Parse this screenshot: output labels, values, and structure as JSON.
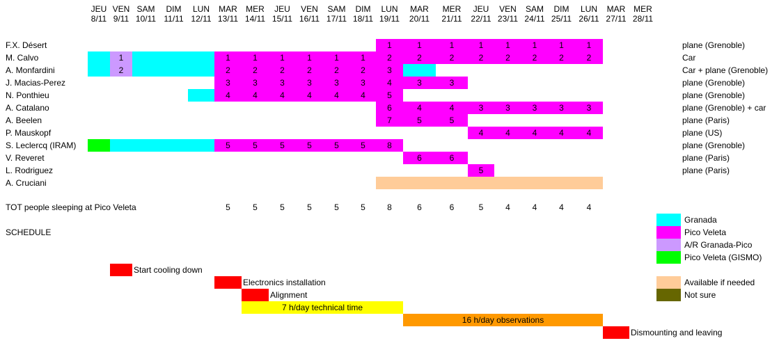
{
  "days": [
    {
      "d": "JEU",
      "n": "8/11"
    },
    {
      "d": "VEN",
      "n": "9/11"
    },
    {
      "d": "SAM",
      "n": "10/11"
    },
    {
      "d": "DIM",
      "n": "11/11"
    },
    {
      "d": "LUN",
      "n": "12/11"
    },
    {
      "d": "MAR",
      "n": "13/11"
    },
    {
      "d": "MER",
      "n": "14/11"
    },
    {
      "d": "JEU",
      "n": "15/11"
    },
    {
      "d": "VEN",
      "n": "16/11"
    },
    {
      "d": "SAM",
      "n": "17/11"
    },
    {
      "d": "DIM",
      "n": "18/11"
    },
    {
      "d": "LUN",
      "n": "19/11"
    },
    {
      "d": "MAR",
      "n": "20/11"
    },
    {
      "d": "MER",
      "n": "21/11"
    },
    {
      "d": "JEU",
      "n": "22/11"
    },
    {
      "d": "VEN",
      "n": "23/11"
    },
    {
      "d": "SAM",
      "n": "24/11"
    },
    {
      "d": "DIM",
      "n": "25/11"
    },
    {
      "d": "LUN",
      "n": "26/11"
    },
    {
      "d": "MAR",
      "n": "27/11"
    },
    {
      "d": "MER",
      "n": "28/11"
    }
  ],
  "colors": {
    "granada": "#00ffff",
    "pico": "#ff00ff",
    "ar": "#cc99ff",
    "gismo": "#00ff00",
    "available": "#ffcc99",
    "notsure": "#666600",
    "red": "#ff0000",
    "yellow": "#ffff00",
    "orange": "#ff9900"
  },
  "people": [
    {
      "name": "F.X. Désert",
      "transport": "plane (Grenoble)",
      "cells": [
        {
          "from": 11,
          "to": 18,
          "c": "pico"
        }
      ],
      "nums": [
        [
          11,
          "1"
        ],
        [
          12,
          "1"
        ],
        [
          13,
          "1"
        ],
        [
          14,
          "1"
        ],
        [
          15,
          "1"
        ],
        [
          16,
          "1"
        ],
        [
          17,
          "1"
        ],
        [
          18,
          "1"
        ]
      ]
    },
    {
      "name": "M. Calvo",
      "transport": "Car",
      "cells": [
        {
          "from": 0,
          "to": 0,
          "c": "granada"
        },
        {
          "from": 1,
          "to": 1,
          "c": "ar"
        },
        {
          "from": 2,
          "to": 4,
          "c": "granada"
        },
        {
          "from": 5,
          "to": 18,
          "c": "pico"
        }
      ],
      "nums": [
        [
          1,
          "1"
        ],
        [
          5,
          "1"
        ],
        [
          6,
          "1"
        ],
        [
          7,
          "1"
        ],
        [
          8,
          "1"
        ],
        [
          9,
          "1"
        ],
        [
          10,
          "1"
        ],
        [
          11,
          "2"
        ],
        [
          12,
          "2"
        ],
        [
          13,
          "2"
        ],
        [
          14,
          "2"
        ],
        [
          15,
          "2"
        ],
        [
          16,
          "2"
        ],
        [
          17,
          "2"
        ],
        [
          18,
          "2"
        ]
      ]
    },
    {
      "name": "A. Monfardini",
      "transport": "Car + plane (Grenoble)",
      "cells": [
        {
          "from": 0,
          "to": 0,
          "c": "granada"
        },
        {
          "from": 1,
          "to": 1,
          "c": "ar"
        },
        {
          "from": 2,
          "to": 4,
          "c": "granada"
        },
        {
          "from": 5,
          "to": 11,
          "c": "pico"
        },
        {
          "from": 12,
          "to": 12,
          "c": "granada"
        }
      ],
      "nums": [
        [
          1,
          "2"
        ],
        [
          5,
          "2"
        ],
        [
          6,
          "2"
        ],
        [
          7,
          "2"
        ],
        [
          8,
          "2"
        ],
        [
          9,
          "2"
        ],
        [
          10,
          "2"
        ],
        [
          11,
          "3"
        ]
      ]
    },
    {
      "name": "J. Macias-Perez",
      "transport": "plane (Grenoble)",
      "cells": [
        {
          "from": 5,
          "to": 13,
          "c": "pico"
        }
      ],
      "nums": [
        [
          5,
          "3"
        ],
        [
          6,
          "3"
        ],
        [
          7,
          "3"
        ],
        [
          8,
          "3"
        ],
        [
          9,
          "3"
        ],
        [
          10,
          "3"
        ],
        [
          11,
          "4"
        ],
        [
          12,
          "3"
        ],
        [
          13,
          "3"
        ]
      ]
    },
    {
      "name": "N. Ponthieu",
      "transport": "plane (Grenoble)",
      "cells": [
        {
          "from": 4,
          "to": 4,
          "c": "granada"
        },
        {
          "from": 5,
          "to": 11,
          "c": "pico"
        }
      ],
      "nums": [
        [
          5,
          "4"
        ],
        [
          6,
          "4"
        ],
        [
          7,
          "4"
        ],
        [
          8,
          "4"
        ],
        [
          9,
          "4"
        ],
        [
          10,
          "4"
        ],
        [
          11,
          "5"
        ]
      ]
    },
    {
      "name": "A. Catalano",
      "transport": "plane (Grenoble) + car",
      "cells": [
        {
          "from": 11,
          "to": 18,
          "c": "pico"
        }
      ],
      "nums": [
        [
          11,
          "6"
        ],
        [
          12,
          "4"
        ],
        [
          13,
          "4"
        ],
        [
          14,
          "3"
        ],
        [
          15,
          "3"
        ],
        [
          16,
          "3"
        ],
        [
          17,
          "3"
        ],
        [
          18,
          "3"
        ]
      ]
    },
    {
      "name": "A. Beelen",
      "transport": "plane (Paris)",
      "cells": [
        {
          "from": 11,
          "to": 13,
          "c": "pico"
        }
      ],
      "nums": [
        [
          11,
          "7"
        ],
        [
          12,
          "5"
        ],
        [
          13,
          "5"
        ]
      ]
    },
    {
      "name": "P. Mauskopf",
      "transport": "plane (US)",
      "cells": [
        {
          "from": 14,
          "to": 18,
          "c": "pico"
        }
      ],
      "nums": [
        [
          14,
          "4"
        ],
        [
          15,
          "4"
        ],
        [
          16,
          "4"
        ],
        [
          17,
          "4"
        ],
        [
          18,
          "4"
        ]
      ]
    },
    {
      "name": "S. Leclercq (IRAM)",
      "transport": "plane (Grenoble)",
      "cells": [
        {
          "from": 0,
          "to": 0,
          "c": "gismo"
        },
        {
          "from": 1,
          "to": 4,
          "c": "granada"
        },
        {
          "from": 5,
          "to": 11,
          "c": "pico"
        }
      ],
      "nums": [
        [
          5,
          "5"
        ],
        [
          6,
          "5"
        ],
        [
          7,
          "5"
        ],
        [
          8,
          "5"
        ],
        [
          9,
          "5"
        ],
        [
          10,
          "5"
        ],
        [
          11,
          "8"
        ]
      ]
    },
    {
      "name": "V. Reveret",
      "transport": "plane (Paris)",
      "cells": [
        {
          "from": 12,
          "to": 13,
          "c": "pico"
        }
      ],
      "nums": [
        [
          12,
          "6"
        ],
        [
          13,
          "6"
        ]
      ]
    },
    {
      "name": "L. Rodriguez",
      "transport": "plane (Paris)",
      "cells": [
        {
          "from": 14,
          "to": 14,
          "c": "pico"
        }
      ],
      "nums": [
        [
          14,
          "5"
        ]
      ]
    },
    {
      "name": "A. Cruciani",
      "transport": "",
      "cells": [
        {
          "from": 11,
          "to": 18,
          "c": "available"
        }
      ],
      "nums": []
    }
  ],
  "total": {
    "label": "TOT people sleeping at Pico Veleta",
    "values": [
      [
        5,
        "5"
      ],
      [
        6,
        "5"
      ],
      [
        7,
        "5"
      ],
      [
        8,
        "5"
      ],
      [
        9,
        "5"
      ],
      [
        10,
        "5"
      ],
      [
        11,
        "8"
      ],
      [
        12,
        "6"
      ],
      [
        13,
        "6"
      ],
      [
        14,
        "5"
      ],
      [
        15,
        "4"
      ],
      [
        16,
        "4"
      ],
      [
        17,
        "4"
      ],
      [
        18,
        "4"
      ]
    ]
  },
  "schedule": {
    "title": "SCHEDULE",
    "items": [
      {
        "label": "Start cooling down",
        "from": 1,
        "to": 1,
        "c": "red",
        "inside": false
      },
      {
        "label": "Electronics installation",
        "from": 5,
        "to": 5,
        "c": "red",
        "inside": false
      },
      {
        "label": "Alignment",
        "from": 6,
        "to": 6,
        "c": "red",
        "inside": false
      },
      {
        "label": "7 h/day technical time",
        "from": 6,
        "to": 11,
        "c": "yellow",
        "inside": true
      },
      {
        "label": "16 h/day observations",
        "from": 12,
        "to": 18,
        "c": "orange",
        "inside": true
      },
      {
        "label": "Dismounting and leaving",
        "from": 19,
        "to": 19,
        "c": "red",
        "inside": false
      }
    ]
  },
  "legend": [
    {
      "label": "Granada",
      "c": "granada"
    },
    {
      "label": "Pico Veleta",
      "c": "pico"
    },
    {
      "label": "A/R Granada-Pico",
      "c": "ar"
    },
    {
      "label": "Pico Veleta (GISMO)",
      "c": "gismo"
    },
    {
      "label": "Available if needed",
      "c": "available"
    },
    {
      "label": "Not sure",
      "c": "notsure"
    }
  ]
}
